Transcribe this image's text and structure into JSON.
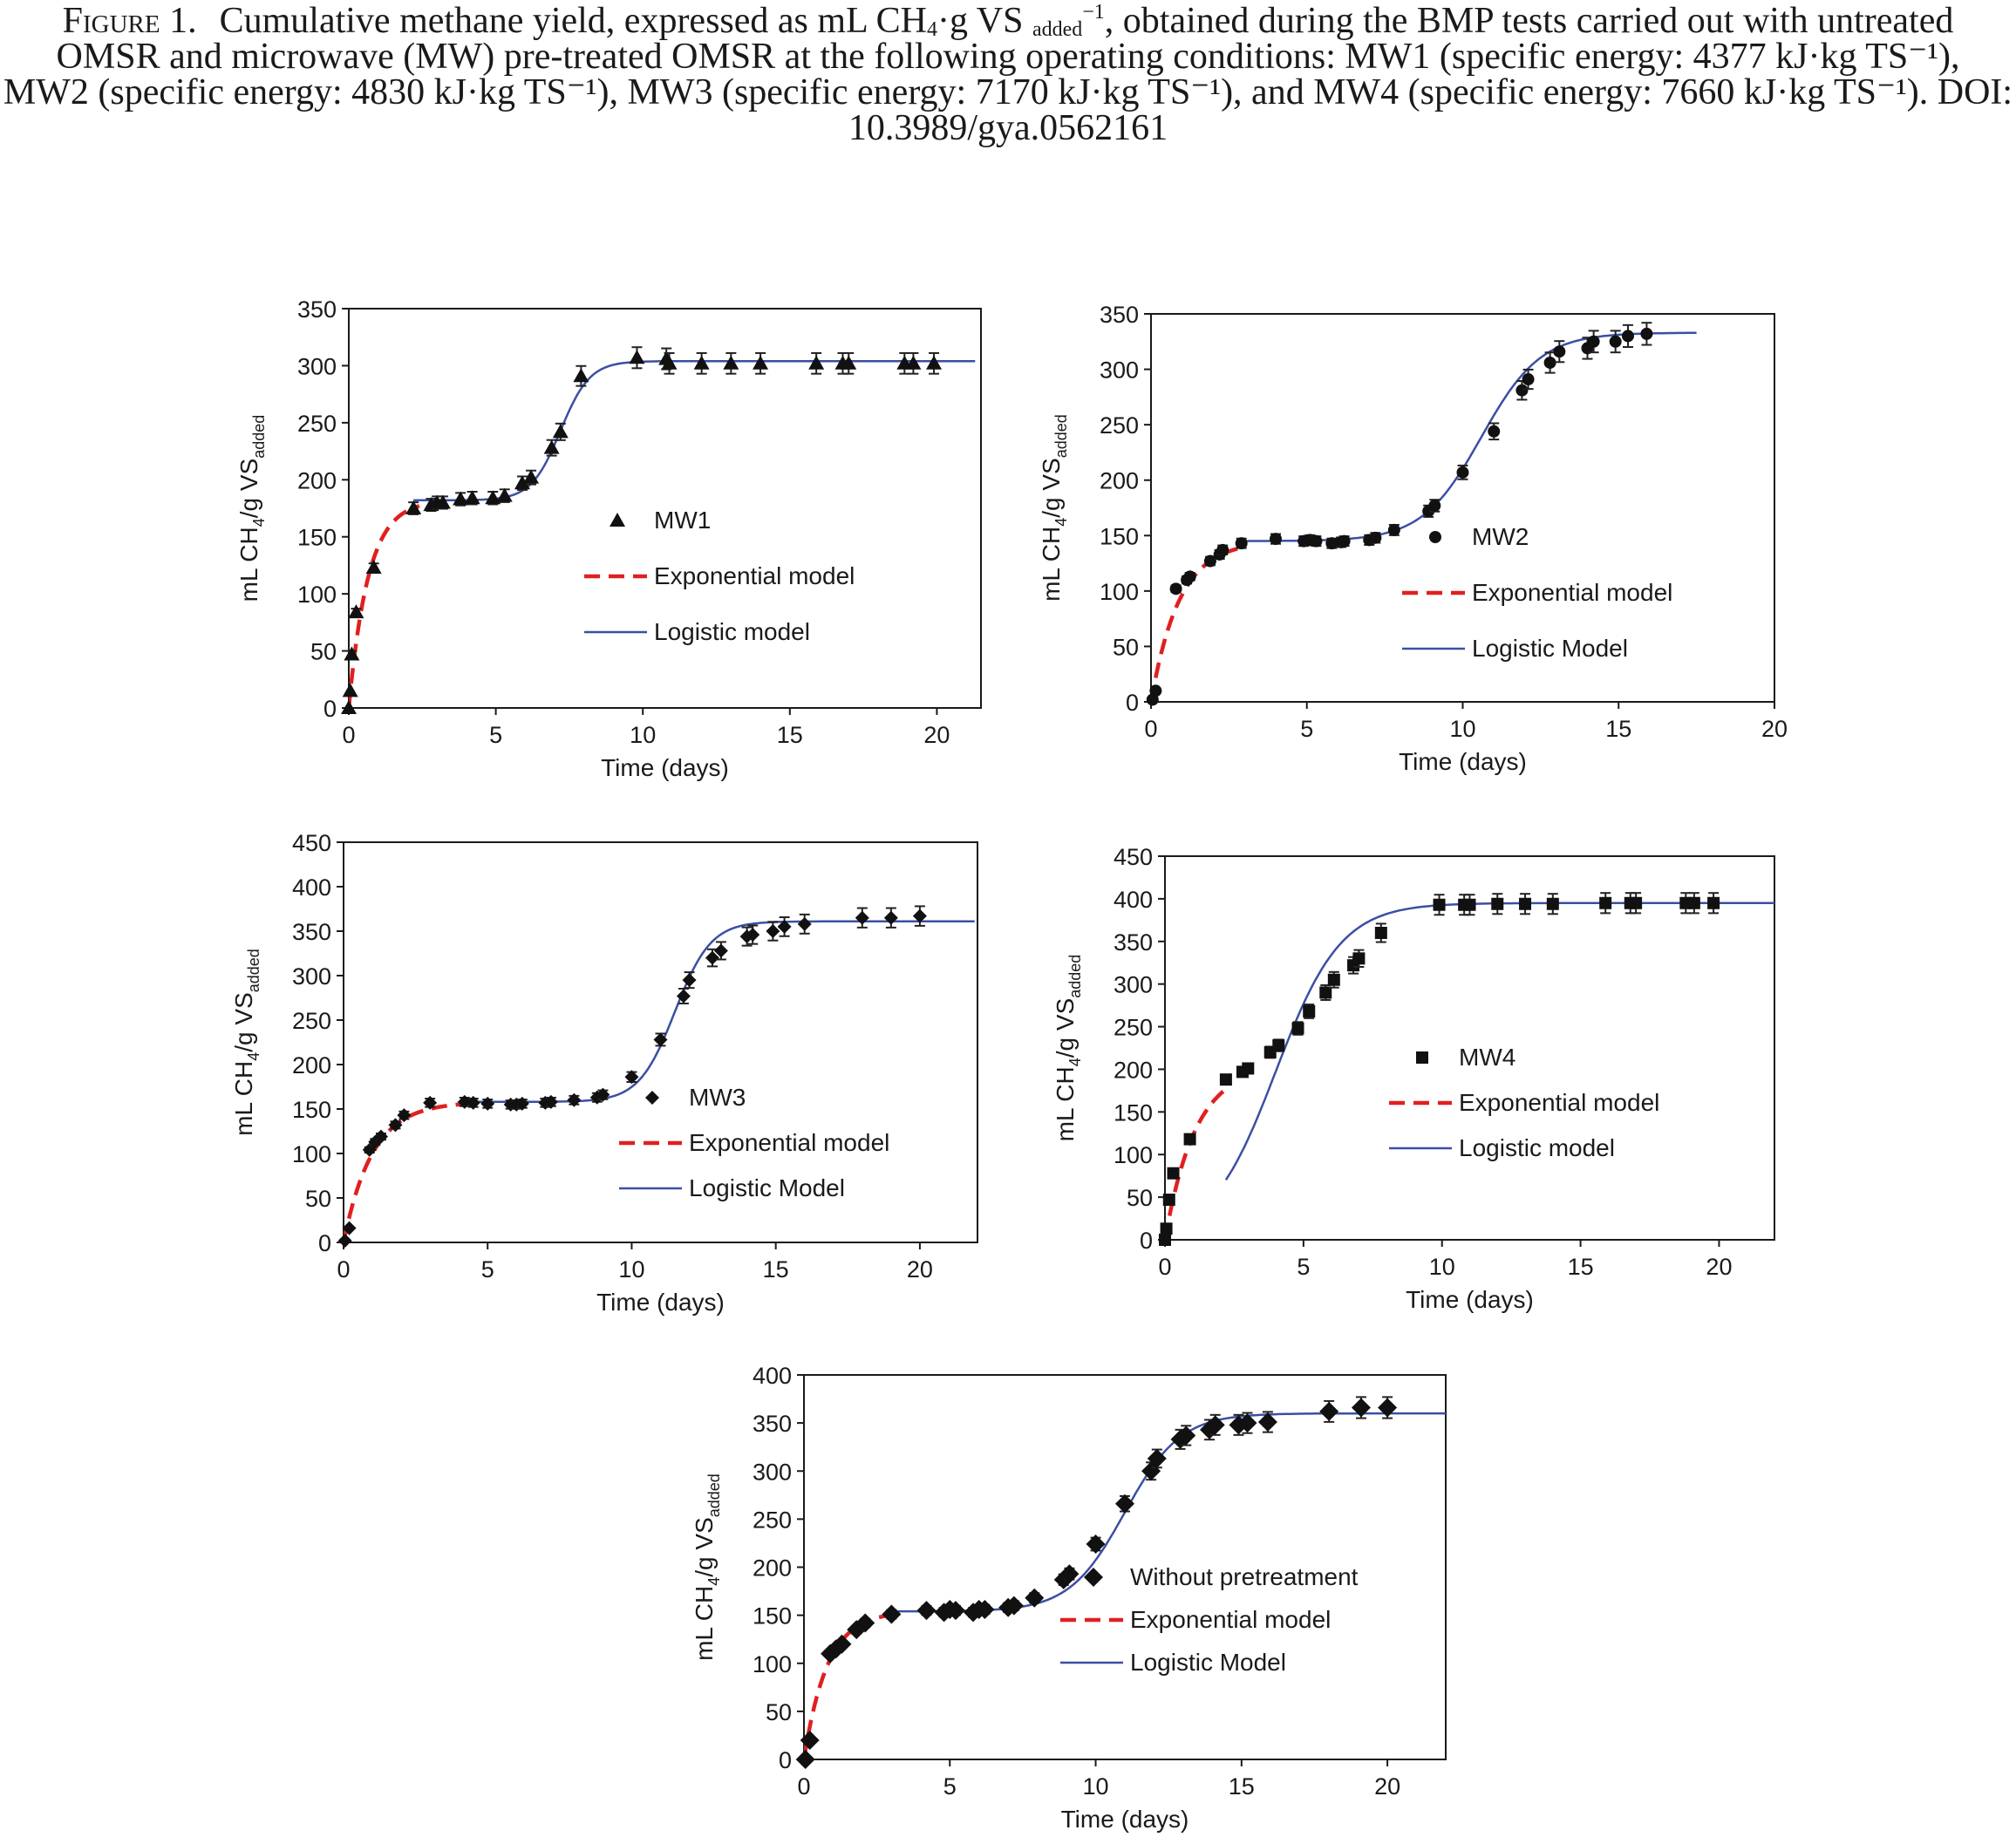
{
  "caption": {
    "label": "Figure 1.",
    "line1_a": "Cumulative methane yield, expressed as mL CH",
    "line1_b": "·g VS ",
    "line1_sub": "added",
    "line1_sup": "−1",
    "line1_c": ", obtained during the BMP tests carried out with untreated",
    "sub4": "4",
    "line2": "OMSR and microwave (MW) pre-treated OMSR at the following operating conditions: MW1 (specific energy: 4377 kJ·kg TS⁻¹),",
    "line3": "MW2 (specific energy: 4830 kJ·kg TS⁻¹), MW3 (specific energy: 7170 kJ·kg TS⁻¹), and MW4 (specific energy: 7660 kJ·kg TS⁻¹). DOI:",
    "line4": "10.3989/gya.0562161"
  },
  "colors": {
    "logistic": "#3b4fa3",
    "exponential": "#e02020",
    "marker": "#111111",
    "axis": "#1a1a1a"
  },
  "chart_data": [
    {
      "id": "mw1",
      "type": "scatter",
      "marker": "triangle",
      "xlabel": "Time (days)",
      "ylabel_main": "mL CH",
      "ylabel_sub1": "4",
      "ylabel_mid": "/g VS",
      "ylabel_sub2": "added",
      "xlim": [
        0,
        21.5
      ],
      "ylim": [
        0,
        350
      ],
      "xticks": [
        0,
        5,
        10,
        15,
        20
      ],
      "yticks": [
        0,
        50,
        100,
        150,
        200,
        250,
        300,
        350
      ],
      "legend": [
        "MW1",
        "Exponential model",
        "Logistic model"
      ],
      "series": [
        {
          "name": "MW1",
          "x": [
            0,
            0.05,
            0.1,
            0.25,
            0.85,
            2.2,
            2.8,
            3.0,
            3.2,
            3.8,
            4.2,
            4.9,
            5.3,
            5.9,
            6.2,
            6.9,
            7.2,
            7.9,
            9.8,
            10.8,
            10.9,
            12.0,
            13.0,
            14.0,
            15.9,
            16.8,
            17.0,
            18.9,
            19.2,
            19.9
          ],
          "y": [
            0,
            15,
            47,
            84,
            123,
            175,
            178,
            180,
            180,
            183,
            184,
            184,
            186,
            197,
            202,
            228,
            242,
            291,
            307,
            306,
            302,
            302,
            302,
            302,
            302,
            302,
            302,
            302,
            302,
            302
          ]
        },
        {
          "name": "Exponential model",
          "model": "exp",
          "x0": 0,
          "x1": 2.4,
          "params": {
            "ymax": 182,
            "k": 1.5,
            "t0": 0
          }
        },
        {
          "name": "Logistic model",
          "model": "logistic",
          "x0": 2.2,
          "x1": 21.3,
          "params": {
            "base": 182,
            "ymax": 304,
            "k": 2.0,
            "tm": 7.2
          }
        }
      ]
    },
    {
      "id": "mw2",
      "type": "scatter",
      "marker": "circle",
      "xlabel": "Time (days)",
      "ylabel_main": "mL CH",
      "ylabel_sub1": "4",
      "ylabel_mid": "/g VS",
      "ylabel_sub2": "added",
      "xlim": [
        0,
        20
      ],
      "ylim": [
        0,
        350
      ],
      "xticks": [
        0,
        5,
        10,
        15,
        20
      ],
      "yticks": [
        0,
        50,
        100,
        150,
        200,
        250,
        300,
        350
      ],
      "legend": [
        "MW2",
        "Exponential model",
        "Logistic Model"
      ],
      "series": [
        {
          "name": "MW2",
          "x": [
            0.05,
            0.15,
            0.8,
            1.15,
            1.25,
            1.9,
            2.2,
            2.3,
            2.9,
            4.0,
            4.9,
            5.1,
            5.3,
            5.8,
            6.1,
            6.2,
            7.0,
            7.2,
            7.8,
            8.9,
            9.1,
            10.0,
            11.0,
            11.9,
            12.1,
            12.8,
            13.1,
            14.0,
            14.2,
            14.9,
            15.3,
            15.9
          ],
          "y": [
            2,
            10,
            102,
            110,
            113,
            127,
            133,
            137,
            143,
            147,
            145,
            146,
            145,
            143,
            144,
            145,
            146,
            148,
            155,
            172,
            177,
            207,
            244,
            281,
            291,
            306,
            316,
            319,
            325,
            325,
            330,
            332
          ]
        },
        {
          "name": "Exponential model",
          "model": "exp",
          "x0": 0,
          "x1": 3.0,
          "params": {
            "ymax": 145,
            "k": 1.1,
            "t0": 0
          }
        },
        {
          "name": "Logistic Model",
          "model": "logistic",
          "x0": 2.8,
          "x1": 17.5,
          "params": {
            "base": 145,
            "ymax": 333,
            "k": 1.05,
            "tm": 10.6
          }
        }
      ]
    },
    {
      "id": "mw3",
      "type": "scatter",
      "marker": "diamond",
      "xlabel": "Time (days)",
      "ylabel_main": "mL CH",
      "ylabel_sub1": "4",
      "ylabel_mid": "/g VS",
      "ylabel_sub2": "added",
      "xlim": [
        0,
        22
      ],
      "ylim": [
        0,
        450
      ],
      "xticks": [
        0,
        5,
        10,
        15,
        20
      ],
      "yticks": [
        0,
        50,
        100,
        150,
        200,
        250,
        300,
        350,
        400,
        450
      ],
      "legend": [
        "MW3",
        "Exponential model",
        "Logistic Model"
      ],
      "series": [
        {
          "name": "MW3",
          "x": [
            0.05,
            0.2,
            0.9,
            1.1,
            1.3,
            1.8,
            2.1,
            3.0,
            4.2,
            4.5,
            5.0,
            5.8,
            6.0,
            6.2,
            7.0,
            7.2,
            8.0,
            8.8,
            9.0,
            10.0,
            11.0,
            11.8,
            12.0,
            12.8,
            13.1,
            14.0,
            14.2,
            14.9,
            15.3,
            16.0,
            18.0,
            19.0,
            20.0
          ],
          "y": [
            2,
            16,
            104,
            113,
            119,
            132,
            143,
            157,
            158,
            157,
            156,
            155,
            155,
            156,
            157,
            158,
            160,
            163,
            166,
            186,
            228,
            277,
            295,
            320,
            328,
            344,
            346,
            350,
            355,
            358,
            365,
            365,
            367
          ]
        },
        {
          "name": "Exponential model",
          "model": "exp",
          "x0": 0,
          "x1": 4.2,
          "params": {
            "ymax": 158,
            "k": 1.0,
            "t0": 0
          }
        },
        {
          "name": "Logistic Model",
          "model": "logistic",
          "x0": 4.0,
          "x1": 21.9,
          "params": {
            "base": 158,
            "ymax": 361,
            "k": 1.6,
            "tm": 11.5
          }
        }
      ]
    },
    {
      "id": "mw4",
      "type": "scatter",
      "marker": "square",
      "xlabel": "Time (days)",
      "ylabel_main": "mL CH",
      "ylabel_sub1": "4",
      "ylabel_mid": "/g VS",
      "ylabel_sub2": "added",
      "xlim": [
        0,
        22
      ],
      "ylim": [
        0,
        450
      ],
      "xticks": [
        0,
        5,
        10,
        15,
        20
      ],
      "yticks": [
        0,
        50,
        100,
        150,
        200,
        250,
        300,
        350,
        400,
        450
      ],
      "legend": [
        "MW4",
        "Exponential model",
        "Logistic model"
      ],
      "series": [
        {
          "name": "MW4",
          "x": [
            0,
            0.05,
            0.15,
            0.3,
            0.9,
            2.2,
            2.8,
            3.0,
            3.8,
            4.1,
            4.8,
            5.2,
            5.8,
            6.1,
            6.8,
            7.0,
            7.8,
            9.9,
            10.8,
            11.0,
            12.0,
            13.0,
            14.0,
            15.9,
            16.8,
            17.0,
            18.8,
            19.1,
            19.8
          ],
          "y": [
            0,
            13,
            47,
            78,
            118,
            188,
            197,
            201,
            220,
            228,
            248,
            268,
            290,
            305,
            322,
            330,
            360,
            393,
            393,
            393,
            394,
            394,
            394,
            395,
            395,
            395,
            395,
            395,
            395
          ]
        },
        {
          "name": "Exponential model",
          "model": "exp",
          "x0": 0,
          "x1": 2.3,
          "params": {
            "ymax": 205,
            "k": 0.9,
            "t0": 0
          }
        },
        {
          "name": "Logistic model",
          "model": "logistic",
          "x0": 2.2,
          "x1": 22,
          "params": {
            "base": 0,
            "ymax": 395,
            "k": 0.85,
            "tm": 4.0
          }
        }
      ]
    },
    {
      "id": "untreated",
      "type": "scatter",
      "marker": "diamond-large",
      "xlabel": "Time (days)",
      "ylabel_main": "mL CH",
      "ylabel_sub1": "4",
      "ylabel_mid": "/g VS",
      "ylabel_sub2": "added",
      "xlim": [
        0,
        22
      ],
      "ylim": [
        0,
        400
      ],
      "xticks": [
        0,
        5,
        10,
        15,
        20
      ],
      "yticks": [
        0,
        50,
        100,
        150,
        200,
        250,
        300,
        350,
        400
      ],
      "legend": [
        "Without pretreatment",
        "Exponential model",
        "Logistic Model"
      ],
      "series": [
        {
          "name": "Without pretreatment",
          "x": [
            0.05,
            0.2,
            0.9,
            1.1,
            1.3,
            1.8,
            2.1,
            3.0,
            4.2,
            4.8,
            5.0,
            5.2,
            5.8,
            6.0,
            6.2,
            7.0,
            7.2,
            7.9,
            8.9,
            9.1,
            10.0,
            11.0,
            11.9,
            12.1,
            12.9,
            13.1,
            13.9,
            14.1,
            14.9,
            15.2,
            15.9,
            18.0,
            19.1,
            20.0
          ],
          "y": [
            0,
            20,
            110,
            115,
            120,
            135,
            142,
            151,
            155,
            153,
            156,
            155,
            153,
            156,
            156,
            158,
            160,
            168,
            187,
            193,
            224,
            266,
            300,
            313,
            333,
            337,
            343,
            348,
            348,
            350,
            351,
            362,
            366,
            366
          ]
        },
        {
          "name": "Exponential model",
          "model": "exp",
          "x0": 0,
          "x1": 3.0,
          "params": {
            "ymax": 154,
            "k": 1.25,
            "t0": 0
          }
        },
        {
          "name": "Logistic Model",
          "model": "logistic",
          "x0": 2.8,
          "x1": 22,
          "params": {
            "base": 154,
            "ymax": 360,
            "k": 1.05,
            "tm": 11.0
          }
        }
      ]
    }
  ]
}
